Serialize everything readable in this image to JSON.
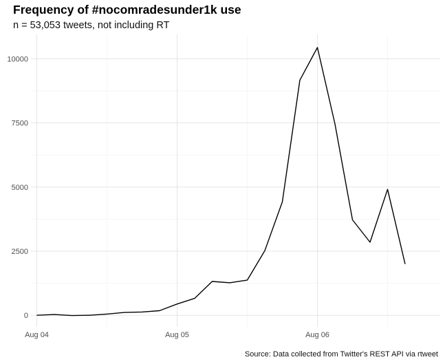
{
  "chart_data": {
    "type": "line",
    "title": "Frequency of #nocomradesunder1k use",
    "subtitle": "n = 53,053 tweets, not including RT",
    "caption": "Source: Data collected from Twitter's REST API via rtweet",
    "xlabel": "",
    "ylabel": "",
    "x_ticks": [
      {
        "label": "Aug 04",
        "hour": 0
      },
      {
        "label": "Aug 05",
        "hour": 24
      },
      {
        "label": "Aug 06",
        "hour": 48
      }
    ],
    "y_ticks": [
      0,
      2500,
      5000,
      7500,
      10000
    ],
    "xlim_hours": [
      -1,
      69
    ],
    "ylim": [
      -450,
      10950
    ],
    "grid": true,
    "series": [
      {
        "x_hours": [
          0,
          3,
          6,
          9,
          12,
          15,
          18,
          21,
          24,
          27,
          30,
          33,
          36,
          39,
          42,
          45,
          48,
          51,
          54,
          57,
          60,
          63
        ],
        "values": [
          0,
          30,
          -10,
          0,
          50,
          110,
          130,
          180,
          440,
          660,
          1320,
          1270,
          1370,
          2520,
          4420,
          9170,
          10440,
          7460,
          3720,
          2850,
          4910,
          2000
        ]
      }
    ],
    "line_color": "#000000"
  }
}
